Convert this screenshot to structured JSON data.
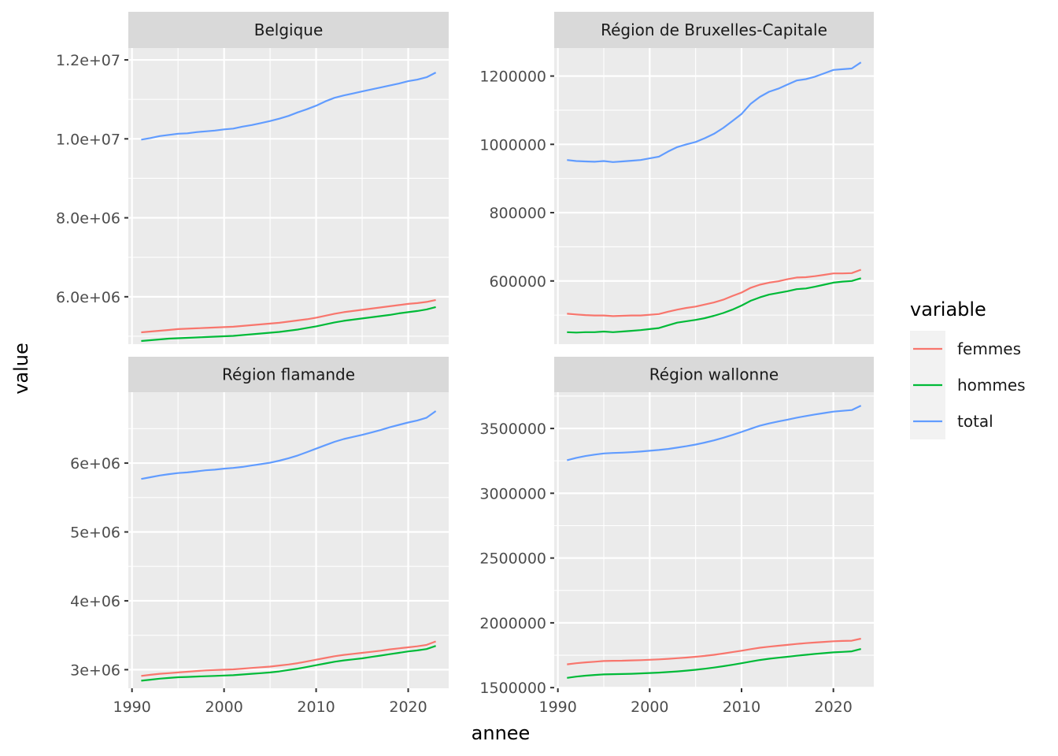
{
  "chart_data": {
    "type": "line",
    "xlabel": "annee",
    "ylabel": "value",
    "x_ticks": [
      1990,
      2000,
      2010,
      2020
    ],
    "x_tick_labels": [
      "1990",
      "2000",
      "2010",
      "2020"
    ],
    "legend": {
      "title": "variable",
      "position": "right",
      "items": [
        {
          "name": "femmes",
          "color": "#F8766D"
        },
        {
          "name": "hommes",
          "color": "#00BA38"
        },
        {
          "name": "total",
          "color": "#619CFF"
        }
      ]
    },
    "years": [
      1991,
      1992,
      1993,
      1994,
      1995,
      1996,
      1997,
      1998,
      1999,
      2000,
      2001,
      2002,
      2003,
      2004,
      2005,
      2006,
      2007,
      2008,
      2009,
      2010,
      2011,
      2012,
      2013,
      2014,
      2015,
      2016,
      2017,
      2018,
      2019,
      2020,
      2021,
      2022,
      2023
    ],
    "panels": [
      {
        "title": "Belgique",
        "y_ticks": [
          6000000,
          8000000,
          10000000,
          12000000
        ],
        "y_tick_labels": [
          "6.0e+06",
          "8.0e+06",
          "1.0e+07",
          "1.2e+07"
        ],
        "ylim": [
          4800000,
          12300000
        ],
        "series": [
          {
            "name": "femmes",
            "values": [
              5100000,
              5120000,
              5140000,
              5160000,
              5180000,
              5190000,
              5200000,
              5210000,
              5220000,
              5230000,
              5240000,
              5260000,
              5280000,
              5300000,
              5320000,
              5340000,
              5370000,
              5400000,
              5430000,
              5470000,
              5520000,
              5570000,
              5610000,
              5640000,
              5670000,
              5700000,
              5730000,
              5760000,
              5790000,
              5820000,
              5840000,
              5870000,
              5920000
            ]
          },
          {
            "name": "hommes",
            "values": [
              4880000,
              4900000,
              4920000,
              4940000,
              4950000,
              4960000,
              4970000,
              4980000,
              4990000,
              5000000,
              5010000,
              5030000,
              5050000,
              5070000,
              5090000,
              5110000,
              5140000,
              5170000,
              5210000,
              5250000,
              5300000,
              5350000,
              5390000,
              5420000,
              5450000,
              5480000,
              5510000,
              5540000,
              5580000,
              5610000,
              5640000,
              5680000,
              5740000
            ]
          },
          {
            "name": "total",
            "values": [
              9980000,
              10020000,
              10070000,
              10100000,
              10130000,
              10140000,
              10170000,
              10190000,
              10210000,
              10240000,
              10260000,
              10310000,
              10350000,
              10400000,
              10450000,
              10510000,
              10580000,
              10670000,
              10750000,
              10840000,
              10950000,
              11040000,
              11100000,
              11150000,
              11200000,
              11250000,
              11300000,
              11350000,
              11400000,
              11460000,
              11500000,
              11560000,
              11680000
            ]
          }
        ]
      },
      {
        "title": "Région de Bruxelles-Capitale",
        "y_ticks": [
          600000,
          800000,
          1000000,
          1200000
        ],
        "y_tick_labels": [
          "600000",
          "800000",
          "1000000",
          "1200000"
        ],
        "ylim": [
          415000,
          1282000
        ],
        "series": [
          {
            "name": "femmes",
            "values": [
              504000,
              502000,
              500000,
              499000,
              499000,
              497000,
              498000,
              499000,
              499000,
              501000,
              503000,
              510000,
              516000,
              521000,
              525000,
              531000,
              537000,
              545000,
              556000,
              566000,
              580000,
              589000,
              595000,
              599000,
              605000,
              610000,
              611000,
              614000,
              618000,
              622000,
              622000,
              623000,
              633000
            ]
          },
          {
            "name": "hommes",
            "values": [
              450000,
              449000,
              450000,
              450000,
              452000,
              450000,
              452000,
              454000,
              456000,
              459000,
              462000,
              470000,
              478000,
              482000,
              486000,
              491000,
              498000,
              506000,
              516000,
              528000,
              542000,
              552000,
              560000,
              565000,
              570000,
              576000,
              578000,
              583000,
              589000,
              595000,
              598000,
              600000,
              608000
            ]
          },
          {
            "name": "total",
            "values": [
              954000,
              951000,
              950000,
              949000,
              951000,
              948000,
              950000,
              952000,
              954000,
              959000,
              964000,
              979000,
              992000,
              1000000,
              1007000,
              1018000,
              1031000,
              1048000,
              1068000,
              1089000,
              1119000,
              1139000,
              1154000,
              1163000,
              1175000,
              1187000,
              1191000,
              1198000,
              1208000,
              1218000,
              1220000,
              1222000,
              1240000
            ]
          }
        ]
      },
      {
        "title": "Région flamande",
        "y_ticks": [
          3000000,
          4000000,
          5000000,
          6000000
        ],
        "y_tick_labels": [
          "3e+06",
          "4e+06",
          "5e+06",
          "6e+06"
        ],
        "ylim": [
          2730000,
          7030000
        ],
        "series": [
          {
            "name": "femmes",
            "values": [
              2910000,
              2925000,
              2940000,
              2950000,
              2960000,
              2970000,
              2980000,
              2990000,
              2995000,
              3000000,
              3005000,
              3015000,
              3025000,
              3035000,
              3045000,
              3060000,
              3075000,
              3095000,
              3120000,
              3145000,
              3170000,
              3195000,
              3215000,
              3230000,
              3245000,
              3260000,
              3275000,
              3295000,
              3310000,
              3325000,
              3340000,
              3360000,
              3410000
            ]
          },
          {
            "name": "hommes",
            "values": [
              2840000,
              2855000,
              2870000,
              2880000,
              2890000,
              2895000,
              2900000,
              2905000,
              2910000,
              2915000,
              2920000,
              2930000,
              2940000,
              2950000,
              2960000,
              2975000,
              2995000,
              3015000,
              3040000,
              3065000,
              3090000,
              3115000,
              3135000,
              3150000,
              3165000,
              3185000,
              3205000,
              3225000,
              3245000,
              3265000,
              3280000,
              3300000,
              3345000
            ]
          },
          {
            "name": "total",
            "values": [
              5770000,
              5795000,
              5820000,
              5840000,
              5855000,
              5865000,
              5880000,
              5895000,
              5905000,
              5920000,
              5930000,
              5945000,
              5965000,
              5985000,
              6005000,
              6035000,
              6070000,
              6110000,
              6160000,
              6210000,
              6260000,
              6310000,
              6350000,
              6380000,
              6410000,
              6445000,
              6480000,
              6520000,
              6555000,
              6590000,
              6620000,
              6660000,
              6755000
            ]
          }
        ]
      },
      {
        "title": "Région wallonne",
        "y_ticks": [
          1500000,
          2000000,
          2500000,
          3000000,
          3500000
        ],
        "y_tick_labels": [
          "1500000",
          "2000000",
          "2500000",
          "3000000",
          "3500000"
        ],
        "ylim": [
          1495000,
          3780000
        ],
        "series": [
          {
            "name": "femmes",
            "values": [
              1680000,
              1688000,
              1695000,
              1700000,
              1705000,
              1707000,
              1708000,
              1710000,
              1712000,
              1715000,
              1718000,
              1722000,
              1727000,
              1732000,
              1738000,
              1745000,
              1753000,
              1763000,
              1774000,
              1785000,
              1797000,
              1808000,
              1816000,
              1823000,
              1830000,
              1837000,
              1843000,
              1848000,
              1853000,
              1858000,
              1860000,
              1862000,
              1878000
            ]
          },
          {
            "name": "hommes",
            "values": [
              1575000,
              1585000,
              1592000,
              1598000,
              1602000,
              1604000,
              1605000,
              1607000,
              1610000,
              1613000,
              1616000,
              1620000,
              1625000,
              1631000,
              1638000,
              1646000,
              1655000,
              1665000,
              1676000,
              1688000,
              1701000,
              1713000,
              1723000,
              1731000,
              1738000,
              1746000,
              1753000,
              1760000,
              1766000,
              1772000,
              1776000,
              1780000,
              1798000
            ]
          },
          {
            "name": "total",
            "values": [
              3255000,
              3273000,
              3287000,
              3298000,
              3307000,
              3311000,
              3313000,
              3317000,
              3322000,
              3328000,
              3334000,
              3342000,
              3352000,
              3363000,
              3376000,
              3391000,
              3408000,
              3428000,
              3450000,
              3473000,
              3498000,
              3521000,
              3539000,
              3554000,
              3568000,
              3583000,
              3596000,
              3608000,
              3619000,
              3630000,
              3636000,
              3642000,
              3676000
            ]
          }
        ]
      }
    ]
  }
}
